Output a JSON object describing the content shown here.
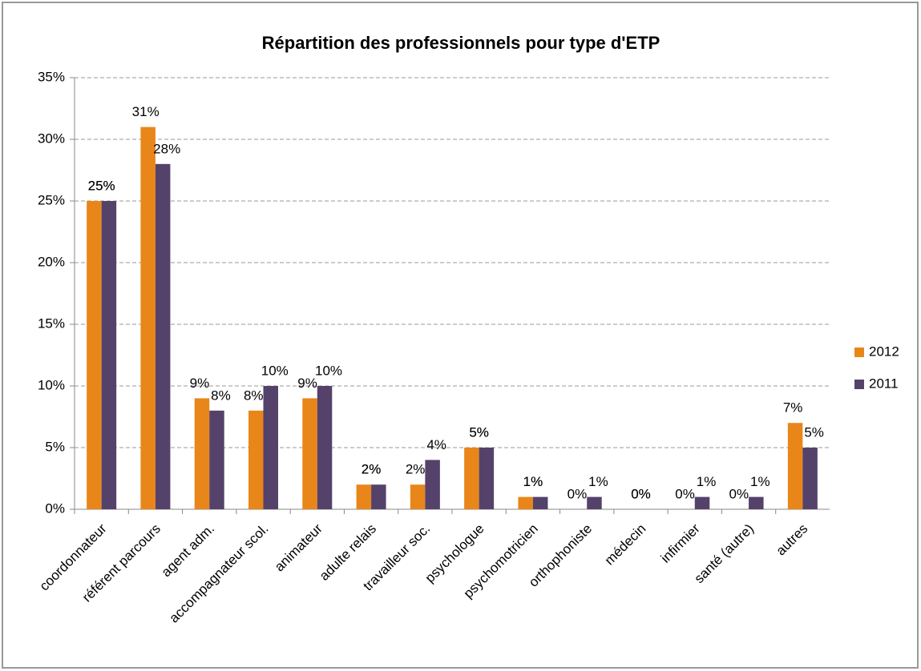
{
  "chart_data": {
    "type": "bar",
    "title": "Répartition des professionnels pour type d'ETP",
    "categories": [
      "coordonnateur",
      "référent parcours",
      "agent adm.",
      "accompagnateur scol.",
      "animateur",
      "adulte relais",
      "travailleur soc.",
      "psychologue",
      "psychomotricien",
      "orthophoniste",
      "médecin",
      "infirmier",
      "santé (autre)",
      "autres"
    ],
    "series": [
      {
        "name": "2012",
        "color": "#e8861a",
        "values": [
          25,
          31,
          9,
          8,
          9,
          2,
          2,
          5,
          1,
          0,
          0,
          0,
          0,
          7
        ],
        "value_labels": [
          "25%",
          "31%",
          "9%",
          "8%",
          "9%",
          "2%",
          "2%",
          "5%",
          "1%",
          "0%",
          "0%",
          "0%",
          "0%",
          "7%"
        ]
      },
      {
        "name": "2011",
        "color": "#55426b",
        "values": [
          25,
          28,
          8,
          10,
          10,
          2,
          4,
          5,
          1,
          1,
          0,
          1,
          1,
          5
        ],
        "value_labels": [
          "25%",
          "28%",
          "8%",
          "10%",
          "10%",
          "2%",
          "4%",
          "5%",
          "1%",
          "1%",
          "0%",
          "1%",
          "1%",
          "5%"
        ]
      }
    ],
    "ylim": [
      0,
      35
    ],
    "yticks": [
      {
        "value": 0,
        "label": "0%"
      },
      {
        "value": 5,
        "label": "5%"
      },
      {
        "value": 10,
        "label": "10%"
      },
      {
        "value": 15,
        "label": "15%"
      },
      {
        "value": 20,
        "label": "20%"
      },
      {
        "value": 25,
        "label": "25%"
      },
      {
        "value": 30,
        "label": "30%"
      },
      {
        "value": 35,
        "label": "35%"
      }
    ],
    "grid": true,
    "legend": "right"
  }
}
